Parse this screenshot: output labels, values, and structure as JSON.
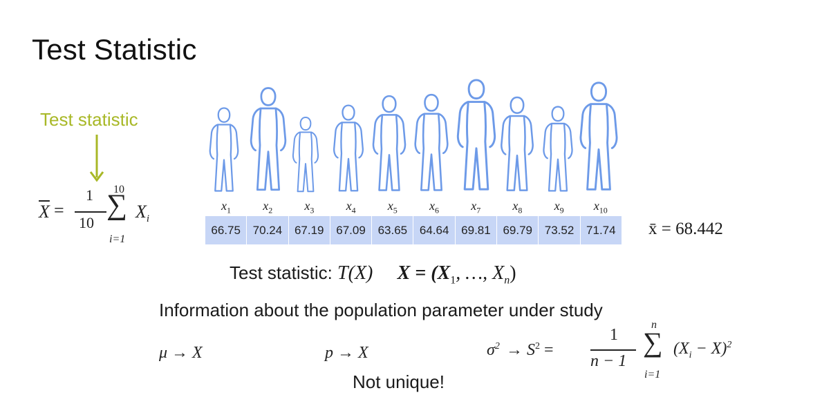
{
  "slide": {
    "title": "Test Statistic",
    "pointer_label": "Test statistic"
  },
  "mean_formula": {
    "lhs": "X",
    "equals": "=",
    "numerator": "1",
    "denominator": "10",
    "sum_upper": "10",
    "sum_lower": "i=1",
    "sigma": "∑",
    "term": "X",
    "term_sub": "i"
  },
  "sample": {
    "subscripts": [
      "1",
      "2",
      "3",
      "4",
      "5",
      "6",
      "7",
      "8",
      "9",
      "10"
    ],
    "variable": "x",
    "values": [
      "66.75",
      "70.24",
      "67.19",
      "67.09",
      "63.65",
      "64.64",
      "69.81",
      "69.79",
      "73.52",
      "71.74"
    ],
    "mean_label": "x̄ = 68.442"
  },
  "statements": {
    "test_stat_prefix": "Test statistic: ",
    "test_stat_T": "T(X)",
    "vector_def": "X = (X",
    "vector_sub1": "1",
    "vector_mid": ", …, X",
    "vector_subn": "n",
    "vector_end": ")",
    "info": "Information about the population parameter under study",
    "not_unique": "Not unique!"
  },
  "estimators": {
    "mu": "μ → X",
    "p": "p → X",
    "sigma_lhs": "σ",
    "sigma_arrow": " → S",
    "sigma_eq": " =",
    "frac_num": "1",
    "frac_den": "n − 1",
    "sum_upper": "n",
    "sum_lower": "i=1",
    "sigma": "∑",
    "term": "(X",
    "term_sub": "i",
    "term_mid": " − X)",
    "power": "2"
  },
  "colors": {
    "accent": "#a8b827",
    "figure_outline": "#6d9ae8",
    "table_fill": "#c7d6f6"
  },
  "icons": [
    "person-figure-icon",
    "arrow-down-icon"
  ]
}
